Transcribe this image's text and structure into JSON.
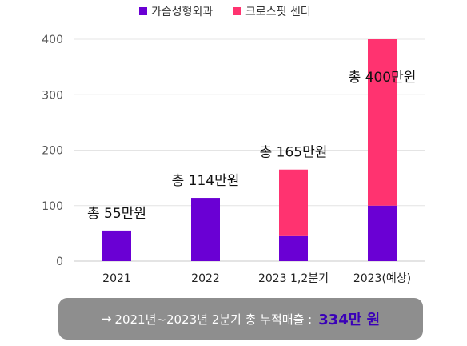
{
  "chart_data": {
    "type": "bar",
    "stacked": true,
    "categories": [
      "2021",
      "2022",
      "2023 1,2분기",
      "2023(예상)"
    ],
    "series": [
      {
        "name": "가슴성형외과",
        "color": "#6a00d4",
        "values": [
          55,
          114,
          45,
          100
        ]
      },
      {
        "name": "크로스핏 센터",
        "color": "#ff3370",
        "values": [
          0,
          0,
          120,
          300
        ]
      }
    ],
    "totals_labels": [
      "총 55만원",
      "총 114만원",
      "총 165만원",
      "총 400만원"
    ],
    "ylim": [
      0,
      400
    ],
    "yticks": [
      0,
      100,
      200,
      300,
      400
    ],
    "grid": true,
    "legend_position": "top"
  },
  "summary": {
    "arrow": "→",
    "text": "2021년~2023년 2분기 총 누적매출 :",
    "highlight": "334만 원"
  }
}
